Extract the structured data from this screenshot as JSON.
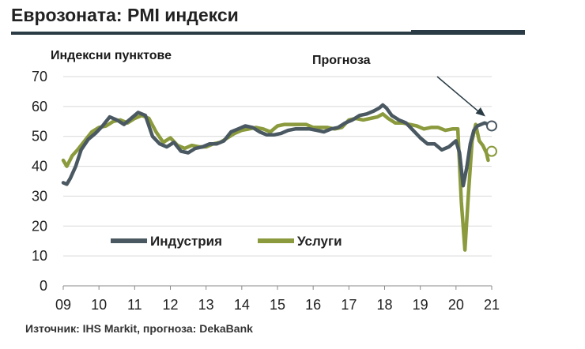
{
  "header": {
    "title": "Еврозоната: PMI индекси",
    "source": "Източник: IHS Markit, прогноза: DekaBank"
  },
  "chart_data": {
    "type": "line",
    "title": "Еврозоната: PMI индекси",
    "ylabel": "Индексни пунктове",
    "xlabel": "",
    "ylim": [
      0,
      70
    ],
    "xlim": [
      2009.0,
      2021.0
    ],
    "yticks": [
      "0",
      "10",
      "20",
      "30",
      "40",
      "50",
      "60",
      "70"
    ],
    "xticks": [
      "09",
      "10",
      "11",
      "12",
      "13",
      "14",
      "15",
      "16",
      "17",
      "18",
      "19",
      "20",
      "21"
    ],
    "annotation": "Прогноза",
    "series": [
      {
        "name": "Индустрия",
        "color": "#4a5862",
        "x": [
          2009.0,
          2009.1,
          2009.2,
          2009.35,
          2009.5,
          2009.7,
          2009.9,
          2010.1,
          2010.3,
          2010.5,
          2010.7,
          2010.9,
          2011.1,
          2011.3,
          2011.5,
          2011.7,
          2011.9,
          2012.1,
          2012.3,
          2012.5,
          2012.7,
          2012.9,
          2013.1,
          2013.3,
          2013.5,
          2013.7,
          2013.9,
          2014.1,
          2014.3,
          2014.5,
          2014.7,
          2014.9,
          2015.1,
          2015.3,
          2015.5,
          2015.7,
          2015.9,
          2016.1,
          2016.3,
          2016.5,
          2016.7,
          2016.9,
          2017.1,
          2017.3,
          2017.5,
          2017.7,
          2017.85,
          2017.95,
          2018.05,
          2018.2,
          2018.4,
          2018.6,
          2018.8,
          2019.0,
          2019.2,
          2019.4,
          2019.6,
          2019.8,
          2020.0,
          2020.1,
          2020.2,
          2020.3,
          2020.4,
          2020.5,
          2020.6,
          2020.7,
          2020.8,
          2020.9
        ],
        "values": [
          34.5,
          34.0,
          36.0,
          40.0,
          45.5,
          49.0,
          51.0,
          53.5,
          56.5,
          55.5,
          54.0,
          56.0,
          58.0,
          57.0,
          50.0,
          47.5,
          46.5,
          48.0,
          45.0,
          44.5,
          46.0,
          46.5,
          47.5,
          47.5,
          48.5,
          51.5,
          52.5,
          53.5,
          53.0,
          51.5,
          50.5,
          50.5,
          51.0,
          52.0,
          52.5,
          52.5,
          52.5,
          52.0,
          51.5,
          52.5,
          53.0,
          54.5,
          55.5,
          57.0,
          57.5,
          58.5,
          59.5,
          60.5,
          59.5,
          57.0,
          55.5,
          54.5,
          52.0,
          49.5,
          47.5,
          47.5,
          45.5,
          46.5,
          48.5,
          44.5,
          33.5,
          39.5,
          47.5,
          52.0,
          53.5,
          54.0,
          54.5,
          54.0
        ]
      },
      {
        "name": "Услуги",
        "color": "#8a9a3c",
        "x": [
          2009.0,
          2009.1,
          2009.25,
          2009.4,
          2009.6,
          2009.8,
          2010.0,
          2010.2,
          2010.4,
          2010.6,
          2010.8,
          2011.0,
          2011.2,
          2011.4,
          2011.6,
          2011.8,
          2012.0,
          2012.2,
          2012.4,
          2012.6,
          2012.8,
          2013.0,
          2013.2,
          2013.4,
          2013.6,
          2013.8,
          2014.0,
          2014.2,
          2014.4,
          2014.6,
          2014.8,
          2015.0,
          2015.2,
          2015.4,
          2015.6,
          2015.8,
          2016.0,
          2016.2,
          2016.4,
          2016.6,
          2016.8,
          2017.0,
          2017.2,
          2017.4,
          2017.6,
          2017.8,
          2017.95,
          2018.1,
          2018.3,
          2018.5,
          2018.7,
          2018.9,
          2019.1,
          2019.3,
          2019.5,
          2019.7,
          2019.9,
          2020.05,
          2020.15,
          2020.25,
          2020.35,
          2020.45,
          2020.55,
          2020.65,
          2020.75,
          2020.85,
          2020.9
        ],
        "values": [
          42.0,
          40.0,
          43.5,
          45.5,
          48.5,
          51.5,
          53.0,
          53.5,
          55.0,
          55.5,
          54.5,
          56.0,
          57.0,
          56.0,
          51.5,
          48.0,
          49.5,
          47.0,
          46.0,
          47.0,
          46.5,
          46.5,
          47.5,
          48.0,
          49.5,
          51.0,
          52.0,
          52.5,
          53.0,
          52.5,
          51.5,
          53.5,
          54.0,
          54.0,
          54.0,
          54.0,
          53.0,
          53.0,
          53.0,
          52.5,
          53.0,
          55.5,
          56.0,
          55.5,
          56.0,
          56.5,
          57.5,
          56.0,
          54.5,
          54.5,
          54.0,
          53.5,
          52.5,
          53.0,
          53.0,
          52.0,
          52.5,
          52.5,
          28.0,
          12.0,
          31.0,
          48.5,
          54.0,
          48.5,
          47.0,
          44.5,
          42.0
        ]
      }
    ],
    "forecast_points": [
      {
        "series": "Индустрия",
        "x": 2021.0,
        "y": 53.5
      },
      {
        "series": "Услуги",
        "x": 2021.0,
        "y": 45.0
      }
    ]
  }
}
